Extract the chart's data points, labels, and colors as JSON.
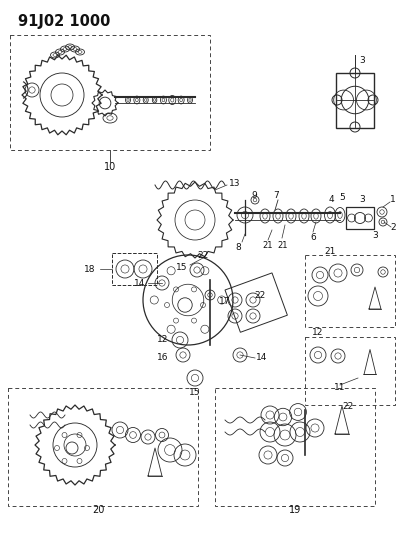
{
  "title": "91J02 1000",
  "bg_color": "#ffffff",
  "line_color": "#2a2a2a",
  "figsize": [
    4.02,
    5.33
  ],
  "dpi": 100,
  "label_fontsize": 6.5,
  "title_fontsize": 10.5
}
